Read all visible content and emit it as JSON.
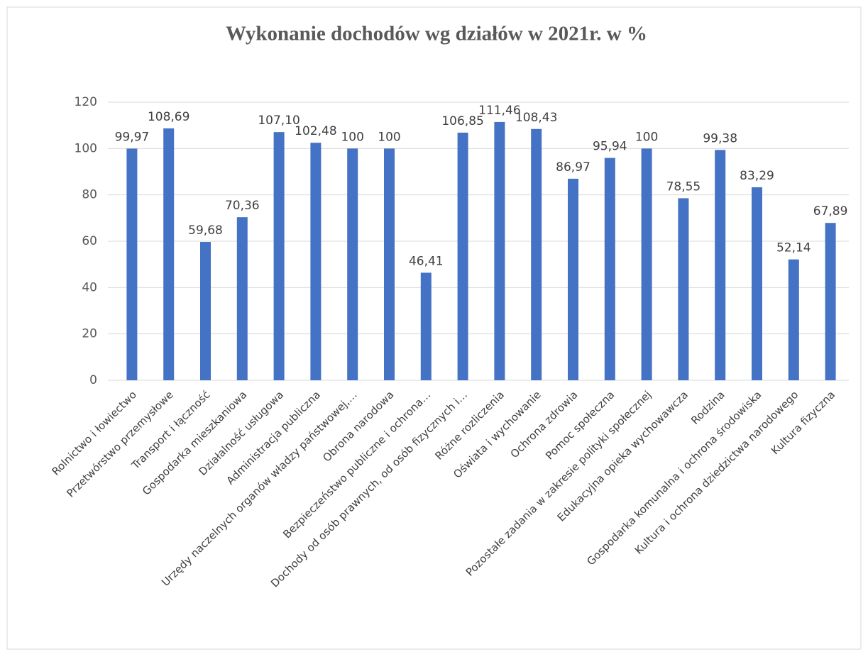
{
  "chart_data": {
    "type": "bar",
    "title": "Wykonanie dochodów wg działów w 2021r. w %",
    "categories": [
      "Rolnictwo i łowiectwo",
      "Przetwórstwo przemysłowe",
      "Transport  i  łączność",
      "Gospodarka  mieszkaniowa",
      "Działalność  usługowa",
      "Administracja  publiczna",
      "Urzędy naczelnych organów władzy państwowej,…",
      "Obrona narodowa",
      "Bezpieczeństwo publiczne i ochrona…",
      "Dochody od osób prawnych, od osób fizycznych i…",
      "Różne rozliczenia",
      "Oświata i wychowanie",
      "Ochrona zdrowia",
      "Pomoc społeczna",
      "Pozostałe zadania w zakresie polityki społecznej",
      "Edukacyjna opieka wychowawcza",
      "Rodzina",
      "Gospodarka komunalna i ochrona środowiska",
      "Kultura i ochrona dziedzictwa narodowego",
      "Kultura fizyczna"
    ],
    "values": [
      99.97,
      108.69,
      59.68,
      70.36,
      107.1,
      102.48,
      100,
      100,
      46.41,
      106.85,
      111.46,
      108.43,
      86.97,
      95.94,
      100,
      78.55,
      99.38,
      83.29,
      52.14,
      67.89
    ],
    "value_labels": [
      "99,97",
      "108,69",
      "59,68",
      "70,36",
      "107,10",
      "102,48",
      "100",
      "100",
      "46,41",
      "106,85",
      "111,46",
      "108,43",
      "86,97",
      "95,94",
      "100",
      "78,55",
      "99,38",
      "83,29",
      "52,14",
      "67,89"
    ],
    "color": "#4472c4",
    "ylim": [
      0,
      120
    ],
    "yticks": [
      0,
      20,
      40,
      60,
      80,
      100,
      120
    ],
    "grid": true
  }
}
